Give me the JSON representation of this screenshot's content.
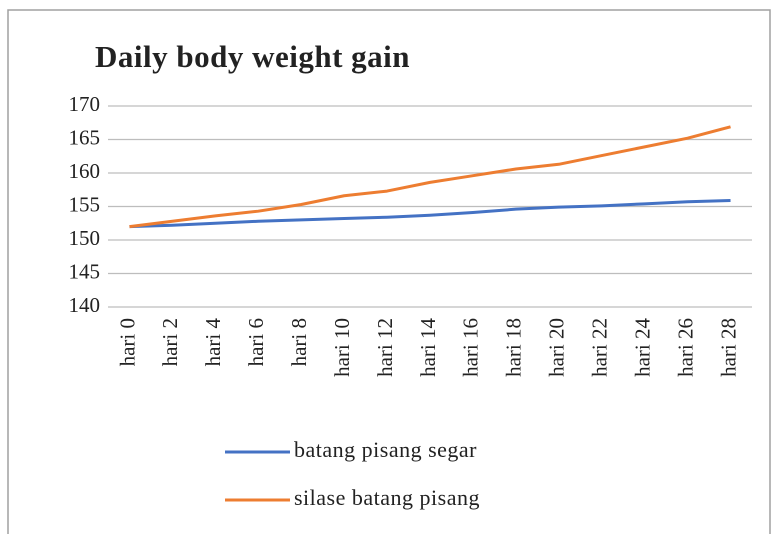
{
  "chart_data": {
    "type": "line",
    "title": "Daily body weight gain",
    "categories": [
      "hari 0",
      "hari 2",
      "hari 4",
      "hari 6",
      "hari 8",
      "hari 10",
      "hari 12",
      "hari 14",
      "hari 16",
      "hari 18",
      "hari 20",
      "hari 22",
      "hari 24",
      "hari 26",
      "hari 28"
    ],
    "series": [
      {
        "name": "batang pisang segar",
        "color": "#4472c4",
        "values": [
          152,
          152.2,
          152.5,
          152.8,
          153.0,
          153.2,
          153.4,
          153.7,
          154.1,
          154.6,
          154.9,
          155.1,
          155.4,
          155.7,
          155.9
        ]
      },
      {
        "name": "silase batang pisang",
        "color": "#ed7d31",
        "values": [
          152,
          152.8,
          153.6,
          154.3,
          155.3,
          156.6,
          157.3,
          158.6,
          159.6,
          160.6,
          161.3,
          162.6,
          163.9,
          165.2,
          166.9
        ]
      }
    ],
    "ylim": [
      140,
      170
    ],
    "yticks": [
      140,
      145,
      150,
      155,
      160,
      165,
      170
    ],
    "grid": true,
    "legend": "bottom"
  }
}
